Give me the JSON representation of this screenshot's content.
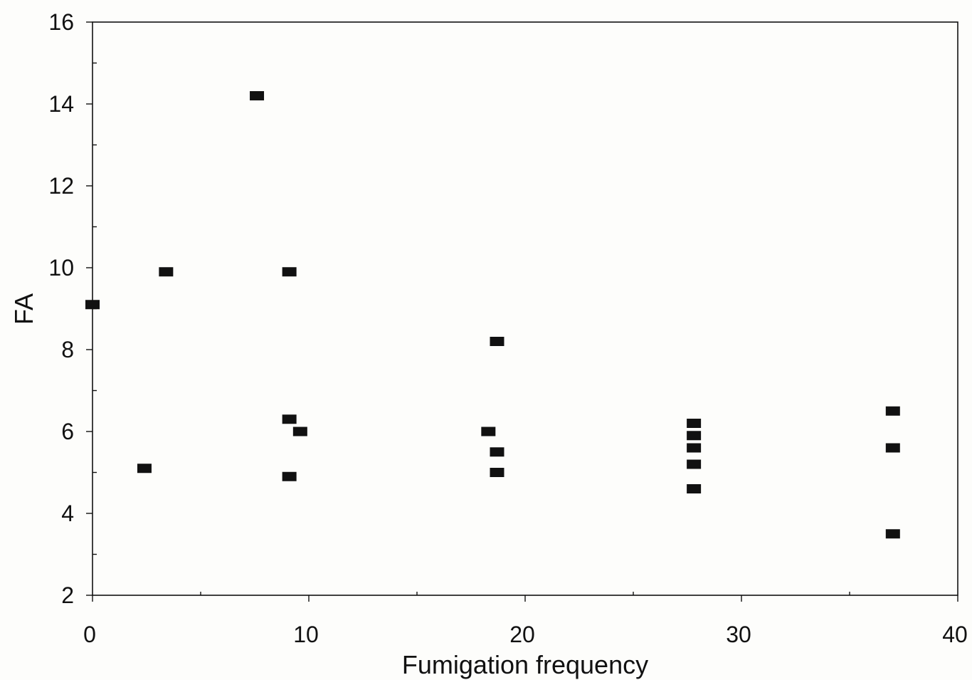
{
  "chart_data": {
    "type": "scatter",
    "title": "",
    "xlabel": "Fumigation frequency",
    "ylabel": "FA",
    "xlim": [
      0,
      40
    ],
    "ylim": [
      2,
      16
    ],
    "x_ticks": [
      "0",
      "10",
      "20",
      "30",
      "40"
    ],
    "y_ticks": [
      "2",
      "4",
      "6",
      "8",
      "10",
      "12",
      "14",
      "16"
    ],
    "grid": false,
    "legend": "none",
    "marker": "square",
    "marker_color": "#111111",
    "series": [
      {
        "points": [
          {
            "x": 0,
            "y": 9.1
          },
          {
            "x": 2.4,
            "y": 5.1
          },
          {
            "x": 3.4,
            "y": 9.9
          },
          {
            "x": 7.6,
            "y": 14.2
          },
          {
            "x": 9.1,
            "y": 9.9
          },
          {
            "x": 9.1,
            "y": 6.3
          },
          {
            "x": 9.1,
            "y": 4.9
          },
          {
            "x": 9.6,
            "y": 6.0
          },
          {
            "x": 18.3,
            "y": 6.0
          },
          {
            "x": 18.7,
            "y": 8.2
          },
          {
            "x": 18.7,
            "y": 5.5
          },
          {
            "x": 18.7,
            "y": 5.0
          },
          {
            "x": 27.8,
            "y": 6.2
          },
          {
            "x": 27.8,
            "y": 5.9
          },
          {
            "x": 27.8,
            "y": 5.6
          },
          {
            "x": 27.8,
            "y": 5.2
          },
          {
            "x": 27.8,
            "y": 4.6
          },
          {
            "x": 37.0,
            "y": 6.5
          },
          {
            "x": 37.0,
            "y": 5.6
          },
          {
            "x": 37.0,
            "y": 3.5
          }
        ]
      }
    ]
  }
}
